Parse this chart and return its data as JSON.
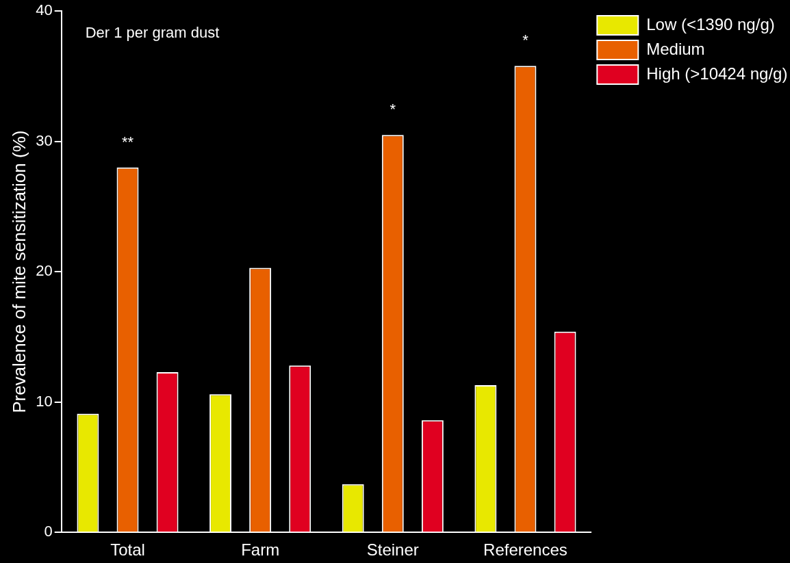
{
  "chart_data": {
    "type": "bar",
    "ylabel": "Prevalence of mite sensitization (%)",
    "categories": [
      "Total",
      "Farm",
      "Steiner",
      "References"
    ],
    "series": [
      {
        "name": "Low (<1390 ng/g)",
        "color": "#e8e800",
        "values": [
          9.1,
          10.6,
          3.7,
          11.3
        ]
      },
      {
        "name": "Medium",
        "color": "#e86000",
        "values": [
          28.0,
          20.3,
          30.5,
          35.8
        ]
      },
      {
        "name": "High (>10424 ng/g)",
        "color": "#e00020",
        "values": [
          12.3,
          12.8,
          8.6,
          15.4
        ]
      }
    ],
    "ylim": [
      0,
      40
    ],
    "yticks": [
      0,
      10,
      20,
      30,
      40
    ],
    "grid": false,
    "legend": "top right",
    "annotations": [
      "Der 1 per gram dust",
      {
        "text": "**",
        "x": "Total",
        "y": 28.0
      },
      {
        "text": "*",
        "x": "Steiner",
        "y": 30.5
      },
      {
        "text": "*",
        "x": "References",
        "y": 35.8
      }
    ]
  }
}
